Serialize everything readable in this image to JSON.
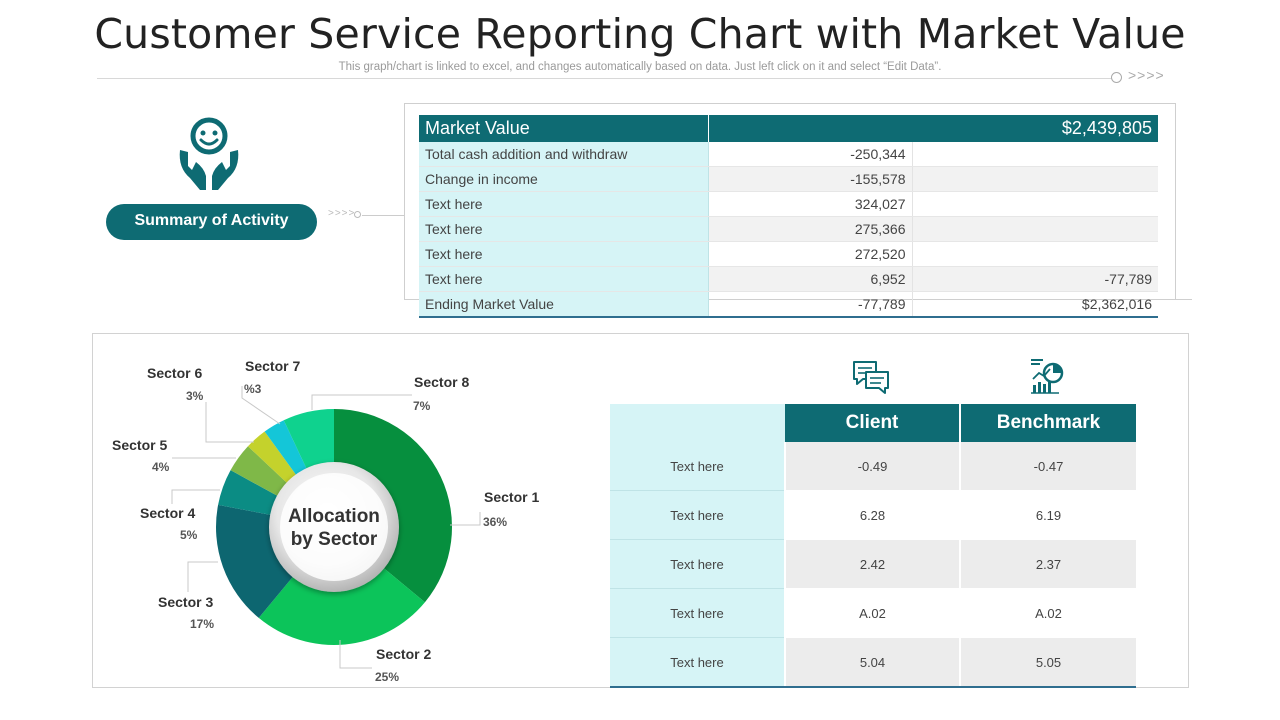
{
  "header": {
    "title": "Customer Service Reporting Chart with Market Value",
    "subtitle": "This graph/chart is linked to excel, and changes automatically based on data. Just left click on it and select “Edit Data”."
  },
  "summary": {
    "label": "Summary of Activity",
    "icon": "happy-customer-icon"
  },
  "market_value": {
    "header_label": "Market Value",
    "header_value": "$2,439,805",
    "rows": [
      {
        "label": "Total cash addition and withdraw",
        "value": "-250,344",
        "extra": ""
      },
      {
        "label": "Change in income",
        "value": "-155,578",
        "extra": ""
      },
      {
        "label": "Text here",
        "value": "324,027",
        "extra": ""
      },
      {
        "label": "Text here",
        "value": "275,366",
        "extra": ""
      },
      {
        "label": "Text here",
        "value": "272,520",
        "extra": ""
      },
      {
        "label": "Text here",
        "value": "6,952",
        "extra": "-77,789"
      },
      {
        "label": "Ending Market Value",
        "value": "-77,789",
        "extra": "$2,362,016"
      }
    ]
  },
  "chart_data": {
    "type": "pie",
    "title": "Allocation by Sector",
    "center_label_line1": "Allocation",
    "center_label_line2": "by Sector",
    "slices": [
      {
        "name": "Sector 1",
        "value": 36,
        "pct_label": "36%",
        "color": "#068f3e"
      },
      {
        "name": "Sector 2",
        "value": 25,
        "pct_label": "25%",
        "color": "#0cc45a"
      },
      {
        "name": "Sector 3",
        "value": 17,
        "pct_label": "17%",
        "color": "#0d6670"
      },
      {
        "name": "Sector 4",
        "value": 5,
        "pct_label": "5%",
        "color": "#0b8c84"
      },
      {
        "name": "Sector 5",
        "value": 4,
        "pct_label": "4%",
        "color": "#7fb848"
      },
      {
        "name": "Sector 6",
        "value": 3,
        "pct_label": "3%",
        "color": "#c4d22c"
      },
      {
        "name": "Sector 7",
        "value": 3,
        "pct_label": "%3",
        "color": "#14c6d8"
      },
      {
        "name": "Sector 8",
        "value": 7,
        "pct_label": "7%",
        "color": "#0fd28e"
      }
    ]
  },
  "benchmark": {
    "icons": [
      "chat-bubbles-icon",
      "analytics-chart-icon"
    ],
    "headers": [
      "Client",
      "Benchmark"
    ],
    "rows": [
      {
        "label": "Text here",
        "client": "-0.49",
        "benchmark": "-0.47"
      },
      {
        "label": "Text here",
        "client": "6.28",
        "benchmark": "6.19"
      },
      {
        "label": "Text here",
        "client": "2.42",
        "benchmark": "2.37"
      },
      {
        "label": "Text here",
        "client": "A.02",
        "benchmark": "A.02"
      },
      {
        "label": "Text here",
        "client": "5.04",
        "benchmark": "5.05"
      }
    ]
  },
  "colors": {
    "accent": "#0e6b73",
    "light_cyan": "#d6f4f6",
    "rule_blue": "#2f6e8f"
  }
}
